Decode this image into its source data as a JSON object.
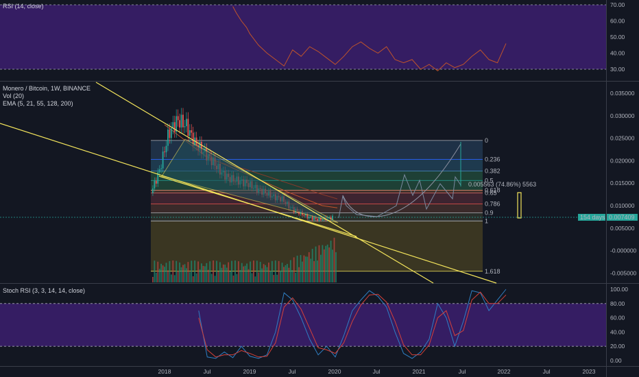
{
  "colors": {
    "background": "#131722",
    "pane_border": "#3a3e4a",
    "band_purple": "#3c1f6e",
    "rsi_line": "#c0542a",
    "stoch_k": "#2f7fc4",
    "stoch_d": "#d5413a",
    "candle_up": "#26a69a",
    "candle_down": "#ef5350",
    "trendline": "#f4e55c",
    "axis_text": "#b2b5be",
    "price_tag": "#26a69a"
  },
  "x_axis": {
    "labels": [
      "2018",
      "Jul",
      "2019",
      "Jul",
      "2020",
      "Jul",
      "2021",
      "Jul",
      "2022",
      "Jul",
      "2023"
    ]
  },
  "rsi_pane": {
    "title": "RSI (14, close)",
    "y_ticks": [
      "70.00",
      "60.00",
      "50.00",
      "40.00",
      "30.00"
    ]
  },
  "main_pane": {
    "title": "Monero / Bitcoin, 1W, BINANCE",
    "indicator_1": "Vol (20)",
    "indicator_2": "EMA (5, 21, 55, 128, 200)",
    "y_ticks": [
      "0.035000",
      "0.030000",
      "0.025000",
      "0.020000",
      "0.015000",
      "0.010000",
      "0.005000",
      "-0.000000",
      "-0.005000"
    ],
    "fib_levels": [
      "0",
      "0.236",
      "0.382",
      "0.5",
      "0.618",
      "0.65",
      "0.786",
      "0.9",
      "1",
      "1.618"
    ],
    "measure_label": "0.005563 (74.86%) 5563",
    "price_tag_left": "154 days",
    "price_tag_right": "0.007409"
  },
  "stoch_pane": {
    "title": "Stoch RSI (3, 3, 14, 14, close)",
    "y_ticks": [
      "100.00",
      "80.00",
      "60.00",
      "40.00",
      "20.00",
      "0.00"
    ]
  },
  "chart_data": [
    {
      "type": "line",
      "title": "RSI (14, close)",
      "ylim": [
        25,
        72
      ],
      "bands": [
        30,
        70
      ],
      "series": [
        {
          "x": [
            2018.4,
            2018.42,
            2018.45,
            2018.48,
            2018.5,
            2018.55,
            2018.6,
            2018.65,
            2018.7,
            2018.75,
            2018.8,
            2018.85,
            2018.9,
            2018.95,
            2019.0,
            2019.05,
            2019.1,
            2019.15,
            2019.2,
            2019.25,
            2019.3,
            2019.35,
            2019.4,
            2019.45,
            2019.5,
            2019.55,
            2019.6,
            2019.65,
            2019.7,
            2019.75,
            2019.8,
            2019.85,
            2019.9,
            2019.95,
            2020.0
          ],
          "values": [
            69,
            65,
            60,
            56,
            52,
            45,
            40,
            36,
            32,
            42,
            38,
            44,
            41,
            37,
            33,
            38,
            44,
            47,
            43,
            40,
            44,
            36,
            34,
            36,
            30,
            33,
            29,
            34,
            31,
            33,
            38,
            42,
            36,
            34,
            46
          ]
        }
      ]
    },
    {
      "type": "line",
      "title": "Monero / Bitcoin, 1W, BINANCE",
      "ylim": [
        -0.007,
        0.037
      ],
      "fibonacci": {
        "0": 0.0245,
        "0.236": 0.0203,
        "0.382": 0.0177,
        "0.5": 0.0156,
        "0.618": 0.0134,
        "0.65": 0.0128,
        "0.786": 0.0104,
        "0.9": 0.0084,
        "1": 0.0066,
        "1.618": -0.0046
      },
      "series": [
        {
          "name": "Monero / Bitcoin, 1W, BINANCE",
          "x": [
            2017.9,
            2018.0,
            2018.1,
            2018.2,
            2018.3,
            2018.4,
            2018.5,
            2018.6,
            2018.7,
            2018.8,
            2018.9,
            2019.0,
            2019.1,
            2019.2,
            2019.3,
            2019.4,
            2019.5,
            2019.6,
            2019.7,
            2019.8,
            2019.9,
            2020.0
          ],
          "values": [
            0.0128,
            0.018,
            0.026,
            0.029,
            0.028,
            0.024,
            0.022,
            0.02,
            0.0175,
            0.016,
            0.0155,
            0.015,
            0.0138,
            0.013,
            0.012,
            0.0115,
            0.0095,
            0.0085,
            0.0075,
            0.007,
            0.0072,
            0.0074
          ]
        }
      ],
      "price": 0.007409
    },
    {
      "type": "line",
      "title": "Stoch RSI (3, 3, 14, 14, close)",
      "ylim": [
        -5,
        105
      ],
      "bands": [
        20,
        80
      ],
      "series": [
        {
          "name": "%K",
          "x": [
            2018.2,
            2018.25,
            2018.3,
            2018.35,
            2018.4,
            2018.45,
            2018.5,
            2018.55,
            2018.6,
            2018.65,
            2018.7,
            2018.75,
            2018.8,
            2018.85,
            2018.9,
            2018.95,
            2019.0,
            2019.05,
            2019.1,
            2019.15,
            2019.2,
            2019.25,
            2019.3,
            2019.35,
            2019.4,
            2019.45,
            2019.5,
            2019.55,
            2019.6,
            2019.65,
            2019.7,
            2019.75,
            2019.8,
            2019.85,
            2019.9,
            2019.95,
            2020.0
          ],
          "values": [
            70,
            5,
            3,
            12,
            4,
            20,
            6,
            3,
            8,
            40,
            95,
            85,
            60,
            30,
            8,
            20,
            5,
            35,
            70,
            85,
            98,
            90,
            75,
            40,
            10,
            3,
            12,
            30,
            80,
            60,
            20,
            55,
            98,
            95,
            70,
            85,
            100
          ]
        },
        {
          "name": "%D",
          "x": [
            2018.2,
            2018.25,
            2018.3,
            2018.35,
            2018.4,
            2018.45,
            2018.5,
            2018.55,
            2018.6,
            2018.65,
            2018.7,
            2018.75,
            2018.8,
            2018.85,
            2018.9,
            2018.95,
            2019.0,
            2019.05,
            2019.1,
            2019.15,
            2019.2,
            2019.25,
            2019.3,
            2019.35,
            2019.4,
            2019.45,
            2019.5,
            2019.55,
            2019.6,
            2019.65,
            2019.7,
            2019.75,
            2019.8,
            2019.85,
            2019.9,
            2019.95,
            2020.0
          ],
          "values": [
            60,
            15,
            5,
            8,
            8,
            14,
            10,
            5,
            6,
            25,
            75,
            88,
            72,
            45,
            18,
            15,
            10,
            25,
            55,
            78,
            92,
            93,
            82,
            55,
            22,
            8,
            8,
            22,
            60,
            70,
            35,
            42,
            85,
            96,
            80,
            80,
            92
          ]
        }
      ]
    }
  ]
}
